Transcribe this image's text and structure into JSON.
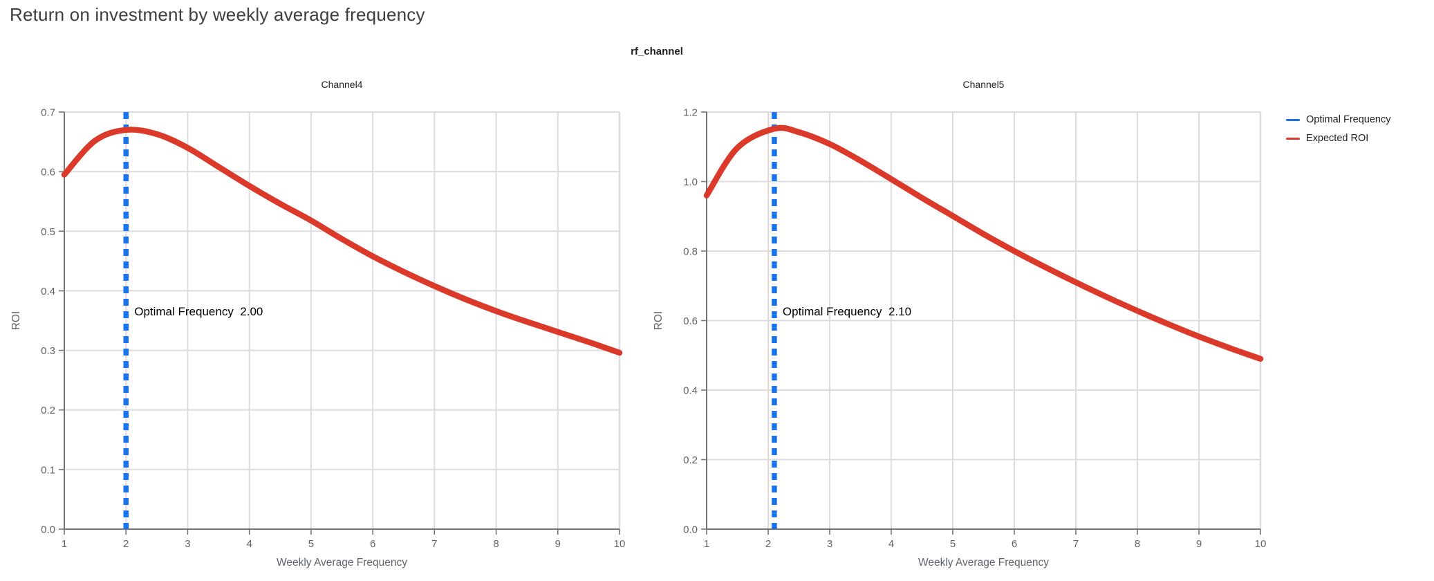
{
  "page": {
    "title": "Return on investment by weekly average frequency",
    "subtitle": "rf_channel"
  },
  "legend": {
    "items": [
      {
        "label": "Optimal Frequency",
        "color": "#1a73e8"
      },
      {
        "label": "Expected ROI",
        "color": "#db3a2b"
      }
    ]
  },
  "colors": {
    "optimal_line": "#1a73e8",
    "roi_curve": "#db3a2b",
    "grid": "#dcdcdc",
    "axis": "#757575",
    "tick_label": "#5f6368",
    "axis_title": "#5f6368",
    "chart_title": "#212121",
    "annotation": "#000000"
  },
  "chart_data": [
    {
      "type": "line",
      "title": "Channel4",
      "xlabel": "Weekly Average Frequency",
      "ylabel": "ROI",
      "xlim": [
        1,
        10
      ],
      "ylim": [
        0.0,
        0.7
      ],
      "x_ticks": [
        "1",
        "2",
        "3",
        "4",
        "5",
        "6",
        "7",
        "8",
        "9",
        "10"
      ],
      "y_ticks": [
        "0.0",
        "0.1",
        "0.2",
        "0.3",
        "0.4",
        "0.5",
        "0.6",
        "0.7"
      ],
      "grid": true,
      "legend_position": "right-top",
      "optimal_frequency": 2.0,
      "annotation": "Optimal Frequency  2.00",
      "series": [
        {
          "name": "Expected ROI",
          "x": [
            1,
            1.5,
            2,
            2.5,
            3,
            3.5,
            4,
            4.5,
            5,
            5.5,
            6,
            6.5,
            7,
            7.5,
            8,
            8.5,
            9,
            9.5,
            10
          ],
          "y": [
            0.595,
            0.652,
            0.67,
            0.663,
            0.64,
            0.608,
            0.576,
            0.546,
            0.518,
            0.487,
            0.458,
            0.432,
            0.408,
            0.386,
            0.366,
            0.348,
            0.331,
            0.314,
            0.296
          ]
        }
      ]
    },
    {
      "type": "line",
      "title": "Channel5",
      "xlabel": "Weekly Average Frequency",
      "ylabel": "ROI",
      "xlim": [
        1,
        10
      ],
      "ylim": [
        0.0,
        1.2
      ],
      "x_ticks": [
        "1",
        "2",
        "3",
        "4",
        "5",
        "6",
        "7",
        "8",
        "9",
        "10"
      ],
      "y_ticks": [
        "0.0",
        "0.2",
        "0.4",
        "0.6",
        "0.8",
        "1.0",
        "1.2"
      ],
      "grid": true,
      "legend_position": "right-top",
      "optimal_frequency": 2.1,
      "annotation": "Optimal Frequency  2.10",
      "series": [
        {
          "name": "Expected ROI",
          "x": [
            1,
            1.5,
            2.1,
            2.5,
            3,
            3.5,
            4,
            4.5,
            5,
            5.5,
            6,
            6.5,
            7,
            7.5,
            8,
            8.5,
            9,
            9.5,
            10
          ],
          "y": [
            0.96,
            1.097,
            1.152,
            1.142,
            1.108,
            1.06,
            1.007,
            0.953,
            0.901,
            0.849,
            0.8,
            0.754,
            0.71,
            0.668,
            0.628,
            0.59,
            0.554,
            0.521,
            0.49
          ]
        }
      ]
    }
  ]
}
